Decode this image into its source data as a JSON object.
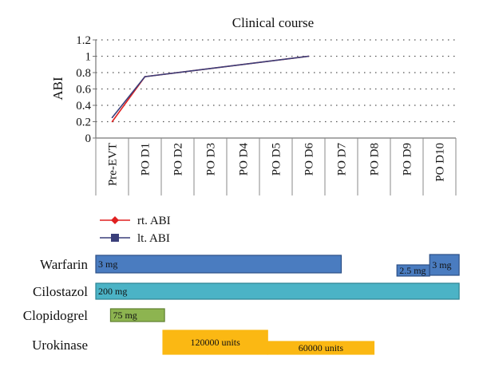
{
  "chart_data": {
    "type": "line",
    "title": "Clinical course",
    "ylabel": "ABI",
    "xlabel": "",
    "ylim": [
      0,
      1.2
    ],
    "yticks": [
      0,
      0.2,
      0.4,
      0.6,
      0.8,
      1,
      1.2
    ],
    "ytick_labels": [
      "0",
      "0.2",
      "0.4",
      "0.6",
      "0.8",
      "1",
      "1.2"
    ],
    "grid": true,
    "categories": [
      "Pre-EVT",
      "PO D1",
      "PO D2",
      "PO D3",
      "PO D4",
      "PO D5",
      "PO D6",
      "PO D7",
      "PO D8",
      "PO D9",
      "PO D10"
    ],
    "series": [
      {
        "name": "rt. ABI",
        "color": "#e02020",
        "marker": "diamond",
        "values": [
          0.2,
          0.75,
          null,
          null,
          null,
          null,
          1.0,
          null,
          null,
          null,
          null
        ]
      },
      {
        "name": "lt. ABI",
        "color": "#3a3f7a",
        "marker": "square",
        "values": [
          0.25,
          0.75,
          null,
          null,
          null,
          null,
          1.0,
          null,
          null,
          null,
          null
        ]
      }
    ],
    "legend_position": "bottom-left"
  },
  "medications": [
    {
      "name": "Warfarin",
      "color": "#4a7cc0",
      "border": "#2c4f86",
      "bars": [
        {
          "start": 0,
          "end": 7.5,
          "label": "3 mg",
          "label_pos": "left"
        },
        {
          "start": 9.2,
          "end": 10.2,
          "label": "2.5 mg",
          "label_pos": "left"
        },
        {
          "start": 10.2,
          "end": 11.1,
          "label": "3 mg",
          "label_pos": "left"
        }
      ]
    },
    {
      "name": "Cilostazol",
      "color": "#4bb3c6",
      "border": "#2d8292",
      "bars": [
        {
          "start": 0,
          "end": 11.1,
          "label": "200 mg",
          "label_pos": "left"
        }
      ]
    },
    {
      "name": "Clopidogrel",
      "color": "#8db450",
      "border": "#5f7f30",
      "bars": [
        {
          "start": 0.45,
          "end": 2.1,
          "label": "75 mg",
          "label_pos": "left"
        }
      ]
    },
    {
      "name": "Urokinase",
      "color": "#fbb813",
      "border": "#fbb813",
      "bars": [
        {
          "start": 2.05,
          "end": 5.25,
          "label": "120000 units",
          "label_pos": "center"
        },
        {
          "start": 5.25,
          "end": 8.5,
          "label": "60000 units",
          "label_pos": "center"
        }
      ]
    }
  ]
}
